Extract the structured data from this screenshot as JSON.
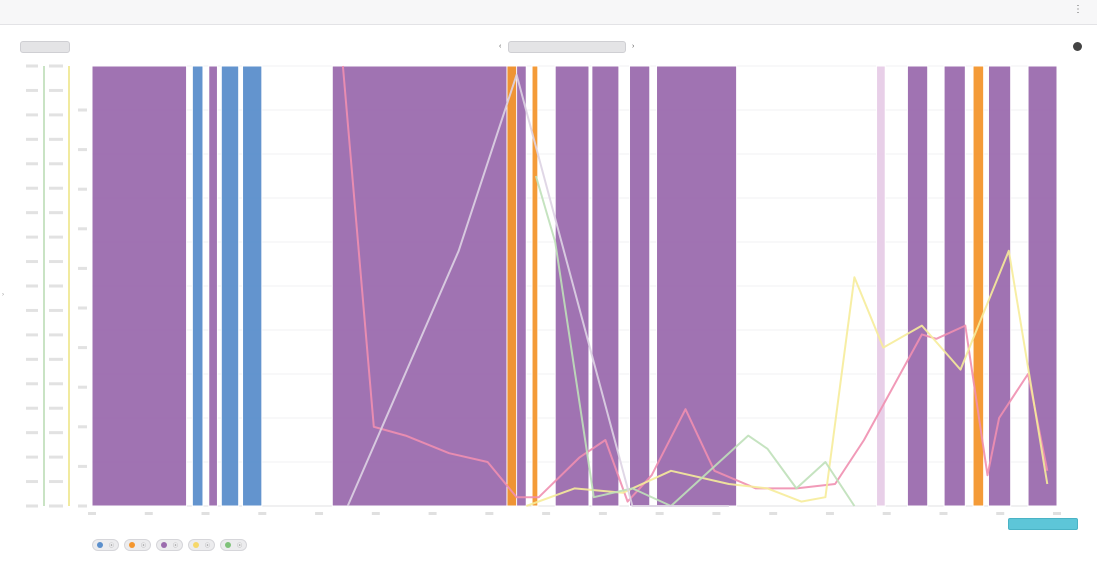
{
  "colors": {
    "blue": "#5b8fcc",
    "orange": "#f4962e",
    "purple": "#9b6cae",
    "light_purple": "#e7cde7",
    "pink_line": "#ef8fb0",
    "yellow_line": "#f6ec9a",
    "green_line": "#bfe0b9",
    "faint_line": "#ddd3e3"
  },
  "chart_data": {
    "type": "area",
    "x_range": [
      0,
      1
    ],
    "y_range": [
      0,
      1
    ],
    "grid": true,
    "legend_placement": "bottom",
    "bands": [
      {
        "series": 2,
        "start": 0.0,
        "end": 0.098
      },
      {
        "series": 0,
        "start": 0.104,
        "end": 0.115
      },
      {
        "series": 2,
        "start": 0.121,
        "end": 0.13
      },
      {
        "series": 0,
        "start": 0.134,
        "end": 0.152
      },
      {
        "series": 0,
        "start": 0.156,
        "end": 0.176
      },
      {
        "series": 2,
        "start": 0.249,
        "end": 0.45
      },
      {
        "series": 1,
        "start": 0.43,
        "end": 0.44
      },
      {
        "series": 1,
        "start": 0.456,
        "end": 0.462
      },
      {
        "series": 2,
        "start": 0.48,
        "end": 0.515
      },
      {
        "series": 2,
        "start": 0.518,
        "end": 0.546
      },
      {
        "series": 2,
        "start": 0.557,
        "end": 0.578
      },
      {
        "series": 2,
        "start": 0.585,
        "end": 0.668
      },
      {
        "series": 2,
        "start": 0.813,
        "end": 0.822,
        "light": true
      },
      {
        "series": 2,
        "start": 0.845,
        "end": 0.866
      },
      {
        "series": 2,
        "start": 0.883,
        "end": 0.905
      },
      {
        "series": 1,
        "start": 0.913,
        "end": 0.924
      },
      {
        "series": 2,
        "start": 0.929,
        "end": 0.952
      },
      {
        "series": 2,
        "start": 0.97,
        "end": 1.0
      }
    ],
    "lines": [
      {
        "series": 2,
        "color_key": "pink_line",
        "x": [
          0.26,
          0.292,
          0.325,
          0.37,
          0.41,
          0.44,
          0.463,
          0.505,
          0.532,
          0.555,
          0.58,
          0.615,
          0.645,
          0.688,
          0.73,
          0.77,
          0.8,
          0.86,
          0.875,
          0.905,
          0.928,
          0.94,
          0.97,
          0.99
        ],
        "y": [
          1.0,
          0.18,
          0.16,
          0.12,
          0.1,
          0.02,
          0.02,
          0.11,
          0.15,
          0.01,
          0.07,
          0.22,
          0.08,
          0.04,
          0.04,
          0.05,
          0.15,
          0.39,
          0.38,
          0.41,
          0.07,
          0.2,
          0.3,
          0.08
        ]
      },
      {
        "series": 3,
        "color_key": "yellow_line",
        "x": [
          0.45,
          0.5,
          0.55,
          0.6,
          0.66,
          0.7,
          0.735,
          0.76,
          0.79,
          0.82,
          0.86,
          0.9,
          0.95,
          0.99
        ],
        "y": [
          0.0,
          0.04,
          0.03,
          0.08,
          0.05,
          0.04,
          0.01,
          0.02,
          0.52,
          0.36,
          0.41,
          0.31,
          0.58,
          0.05
        ]
      },
      {
        "series": 4,
        "color_key": "green_line",
        "x": [
          0.46,
          0.48,
          0.52,
          0.56,
          0.6,
          0.68,
          0.7,
          0.73,
          0.76,
          0.79
        ],
        "y": [
          0.75,
          0.6,
          0.02,
          0.04,
          0.0,
          0.16,
          0.13,
          0.04,
          0.1,
          0.0
        ]
      },
      {
        "series": -1,
        "color_key": "faint_line",
        "x": [
          0.265,
          0.38,
          0.44,
          0.56,
          0.66
        ],
        "y": [
          0.0,
          0.58,
          0.98,
          0.0,
          0.0
        ]
      }
    ],
    "series": [
      {
        "name": "",
        "color_key": "blue"
      },
      {
        "name": "",
        "color_key": "orange"
      },
      {
        "name": "",
        "color_key": "purple"
      },
      {
        "name": "",
        "color_key": "yellow_line"
      },
      {
        "name": "",
        "color_key": "green_line"
      }
    ]
  },
  "header": {
    "user_name": "",
    "more_icon": "more-vertical-icon"
  },
  "toolbar": {
    "back_label": "",
    "range_label": "",
    "nav_left_icon": "chevron-left-icon",
    "nav_right_icon": "chevron-right-icon",
    "settings_icon": "settings-icon",
    "export_label": ""
  }
}
